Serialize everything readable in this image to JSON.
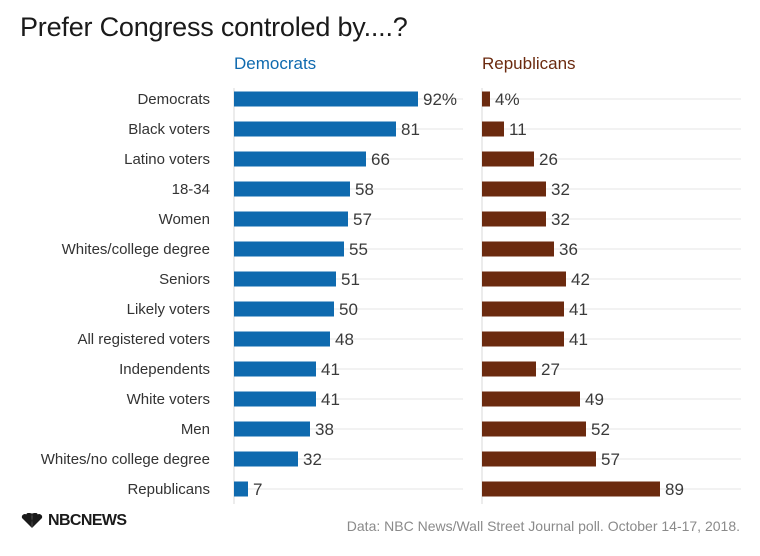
{
  "page": {
    "title": "Prefer Congress controled by....?",
    "source": "Data: NBC News/Wall Street Journal poll. October 14-17, 2018.",
    "logo_text": "NBCNEWS"
  },
  "colors": {
    "democrats": "#0f6aaf",
    "republicans": "#6b2a0f",
    "gridline": "#e6e6e6",
    "label": "#333333",
    "value": "#3a3a3a"
  },
  "chart_data": {
    "type": "bar",
    "orientation": "horizontal",
    "categories": [
      "Democrats",
      "Black voters",
      "Latino voters",
      "18-34",
      "Women",
      "Whites/college degree",
      "Seniors",
      "Likely voters",
      "All registered voters",
      "Independents",
      "White voters",
      "Men",
      "Whites/no college degree",
      "Republicans"
    ],
    "series": [
      {
        "name": "Democrats",
        "values": [
          92,
          81,
          66,
          58,
          57,
          55,
          51,
          50,
          48,
          41,
          41,
          38,
          32,
          7
        ],
        "labels": [
          "92%",
          "81",
          "66",
          "58",
          "57",
          "55",
          "51",
          "50",
          "48",
          "41",
          "41",
          "38",
          "32",
          "7"
        ]
      },
      {
        "name": "Republicans",
        "values": [
          4,
          11,
          26,
          32,
          32,
          36,
          42,
          41,
          41,
          27,
          49,
          52,
          57,
          89
        ],
        "labels": [
          "4%",
          "11",
          "26",
          "32",
          "32",
          "36",
          "42",
          "41",
          "41",
          "27",
          "49",
          "52",
          "57",
          "89"
        ]
      }
    ],
    "xlim": [
      0,
      100
    ],
    "grid": true,
    "title": "Prefer Congress controled by....?"
  }
}
